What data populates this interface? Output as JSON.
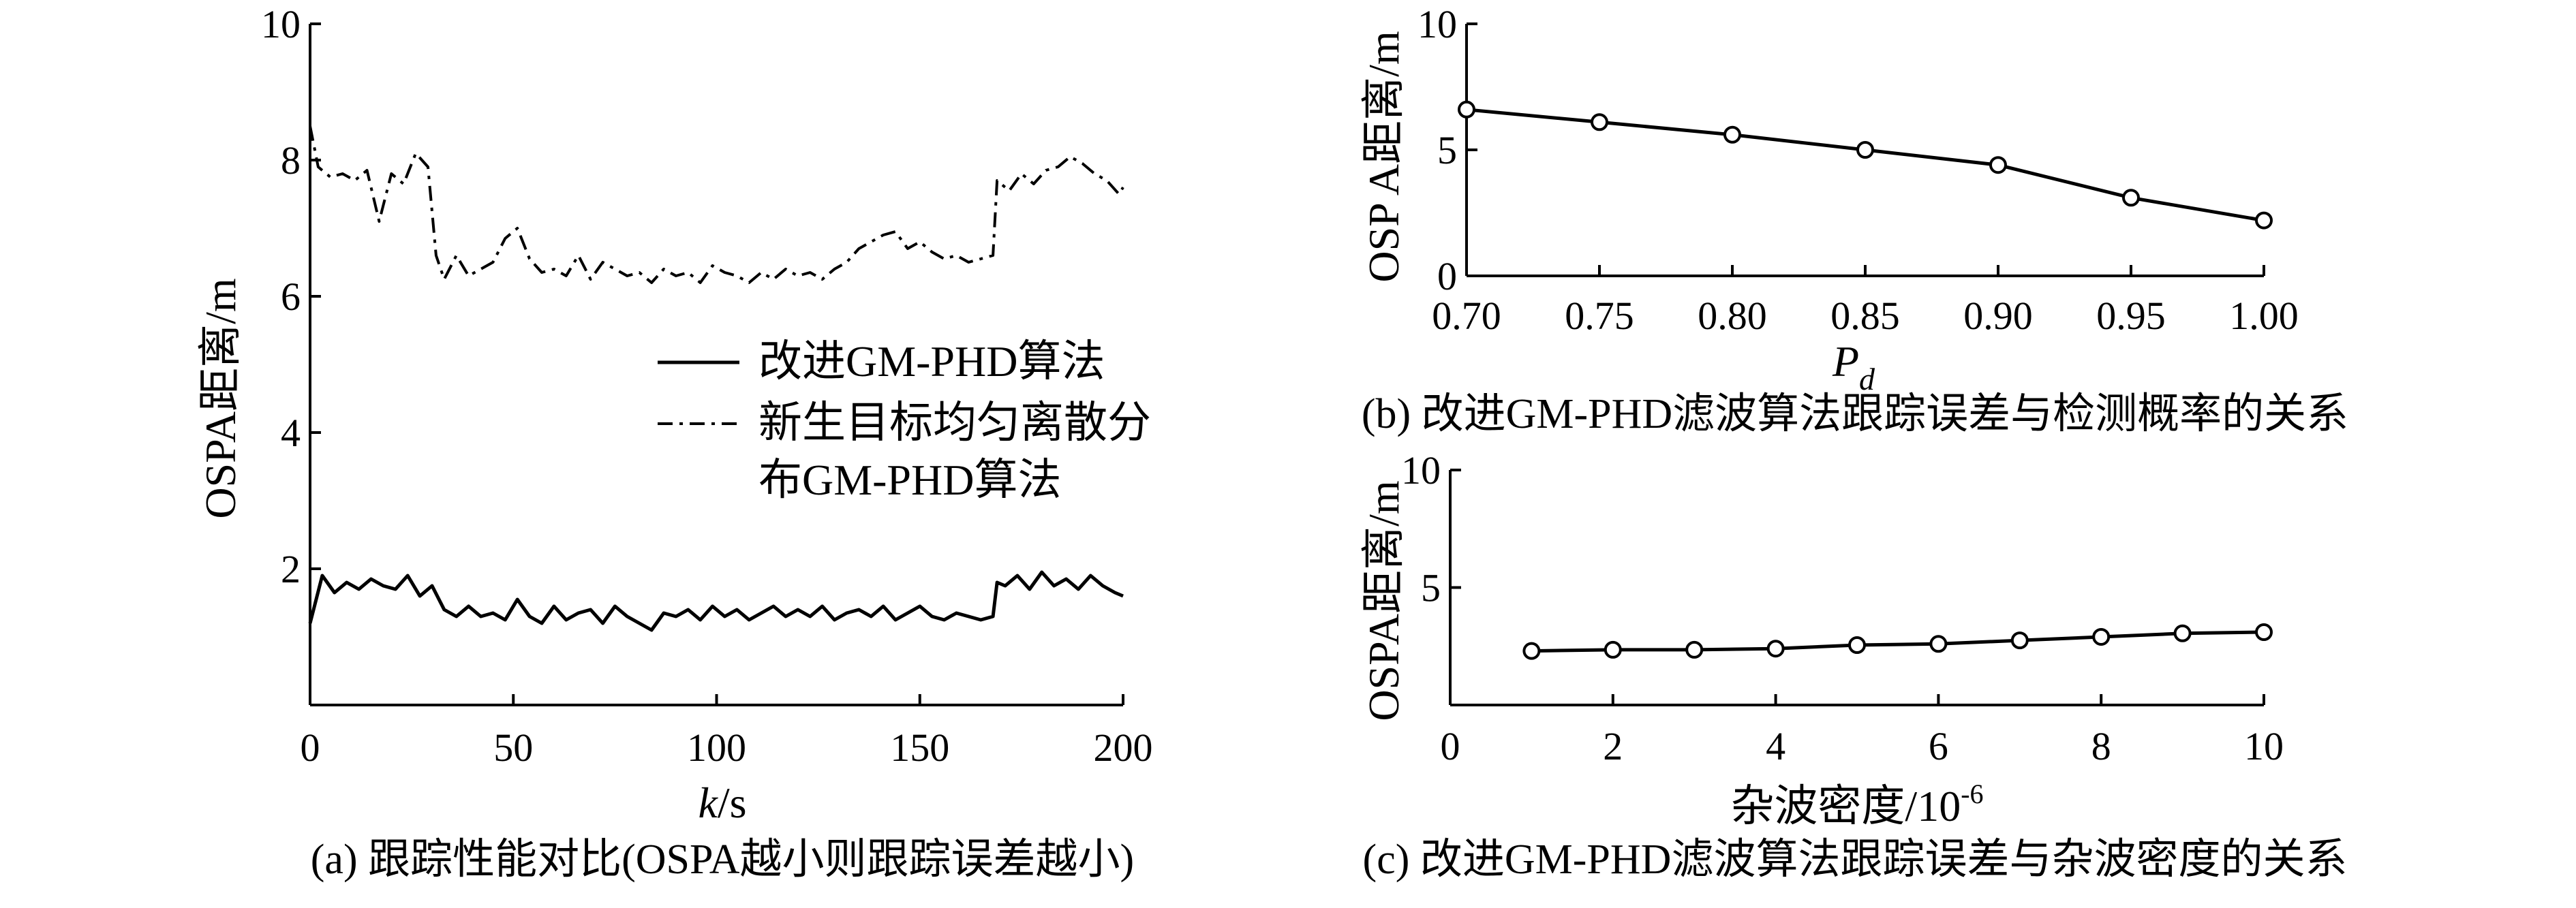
{
  "chart_data": [
    {
      "id": "a",
      "type": "line",
      "caption": "(a) 跟踪性能对比(OSPA越小则跟踪误差越小)",
      "xlabel_italic": "k",
      "xlabel_rest": "/s",
      "ylabel": "OSPA距离/m",
      "xlim": [
        0,
        200
      ],
      "ylim": [
        0,
        10
      ],
      "xticks": [
        0,
        50,
        100,
        150,
        200
      ],
      "yticks": [
        2,
        4,
        6,
        8,
        10
      ],
      "legend_position": "center",
      "series": [
        {
          "name": "改进GM-PHD算法",
          "style": "solid",
          "x": [
            0,
            3,
            6,
            9,
            12,
            15,
            18,
            21,
            24,
            27,
            30,
            33,
            36,
            39,
            42,
            45,
            48,
            51,
            54,
            57,
            60,
            63,
            66,
            69,
            72,
            75,
            78,
            81,
            84,
            87,
            90,
            93,
            96,
            99,
            102,
            105,
            108,
            111,
            114,
            117,
            120,
            123,
            126,
            129,
            132,
            135,
            138,
            141,
            144,
            147,
            150,
            153,
            156,
            159,
            162,
            165,
            168,
            169,
            171,
            174,
            177,
            180,
            183,
            186,
            189,
            192,
            195,
            198,
            200
          ],
          "y": [
            1.2,
            1.9,
            1.65,
            1.8,
            1.7,
            1.85,
            1.75,
            1.7,
            1.9,
            1.6,
            1.75,
            1.4,
            1.3,
            1.45,
            1.3,
            1.35,
            1.25,
            1.55,
            1.3,
            1.2,
            1.45,
            1.25,
            1.35,
            1.4,
            1.2,
            1.45,
            1.3,
            1.2,
            1.1,
            1.35,
            1.3,
            1.4,
            1.25,
            1.45,
            1.3,
            1.4,
            1.25,
            1.35,
            1.45,
            1.3,
            1.4,
            1.3,
            1.45,
            1.25,
            1.35,
            1.4,
            1.3,
            1.45,
            1.25,
            1.35,
            1.45,
            1.3,
            1.25,
            1.35,
            1.3,
            1.25,
            1.3,
            1.8,
            1.75,
            1.9,
            1.7,
            1.95,
            1.75,
            1.85,
            1.7,
            1.9,
            1.75,
            1.65,
            1.6
          ]
        },
        {
          "name": "新生目标均匀离散分\n布GM-PHD算法",
          "style": "dashdot",
          "x": [
            0,
            2,
            5,
            8,
            11,
            14,
            17,
            20,
            23,
            26,
            29,
            31,
            33,
            36,
            39,
            42,
            45,
            48,
            51,
            54,
            57,
            60,
            63,
            66,
            69,
            72,
            75,
            78,
            81,
            84,
            87,
            90,
            93,
            96,
            99,
            102,
            105,
            108,
            111,
            114,
            117,
            120,
            123,
            126,
            129,
            132,
            135,
            138,
            141,
            144,
            147,
            150,
            153,
            156,
            159,
            162,
            165,
            168,
            169,
            172,
            175,
            178,
            181,
            184,
            187,
            190,
            193,
            196,
            199,
            200
          ],
          "y": [
            8.5,
            7.9,
            7.75,
            7.8,
            7.7,
            7.85,
            7.1,
            7.8,
            7.65,
            8.1,
            7.9,
            6.6,
            6.25,
            6.6,
            6.3,
            6.4,
            6.5,
            6.85,
            7.0,
            6.55,
            6.35,
            6.4,
            6.3,
            6.6,
            6.25,
            6.5,
            6.4,
            6.3,
            6.35,
            6.2,
            6.4,
            6.3,
            6.35,
            6.2,
            6.45,
            6.35,
            6.3,
            6.2,
            6.35,
            6.25,
            6.4,
            6.3,
            6.35,
            6.25,
            6.4,
            6.5,
            6.7,
            6.8,
            6.9,
            6.95,
            6.7,
            6.8,
            6.65,
            6.55,
            6.6,
            6.5,
            6.55,
            6.6,
            7.7,
            7.55,
            7.8,
            7.65,
            7.85,
            7.9,
            8.05,
            7.95,
            7.8,
            7.7,
            7.5,
            7.6
          ]
        }
      ]
    },
    {
      "id": "b",
      "type": "line",
      "caption": "(b) 改进GM-PHD滤波算法跟踪误差与检测概率的关系",
      "xlabel_main": "P",
      "xlabel_sub": "d",
      "ylabel": "OSP A距离/m",
      "xlim": [
        0.7,
        1.0
      ],
      "ylim": [
        0,
        10
      ],
      "xticks": [
        0.7,
        0.75,
        0.8,
        0.85,
        0.9,
        0.95,
        1.0
      ],
      "xtick_labels": [
        "0.70",
        "0.75",
        "0.80",
        "0.85",
        "0.90",
        "0.95",
        "1.00"
      ],
      "yticks": [
        0,
        5,
        10
      ],
      "marker": "circle",
      "x": [
        0.7,
        0.75,
        0.8,
        0.85,
        0.9,
        0.95,
        1.0
      ],
      "y": [
        6.6,
        6.1,
        5.6,
        5.0,
        4.4,
        3.1,
        2.2
      ]
    },
    {
      "id": "c",
      "type": "line",
      "caption": "(c) 改进GM-PHD滤波算法跟踪误差与杂波密度的关系",
      "xlabel_main": "杂波密度/10",
      "xlabel_sup": "-6",
      "ylabel": "OSPA距离/m",
      "xlim": [
        0,
        10
      ],
      "ylim": [
        0,
        10
      ],
      "xticks": [
        0,
        2,
        4,
        6,
        8,
        10
      ],
      "yticks": [
        5,
        10
      ],
      "marker": "circle",
      "x": [
        1,
        2,
        3,
        4,
        5,
        6,
        7,
        8,
        9,
        10
      ],
      "y": [
        2.3,
        2.35,
        2.35,
        2.4,
        2.55,
        2.6,
        2.75,
        2.9,
        3.05,
        3.1
      ]
    }
  ]
}
